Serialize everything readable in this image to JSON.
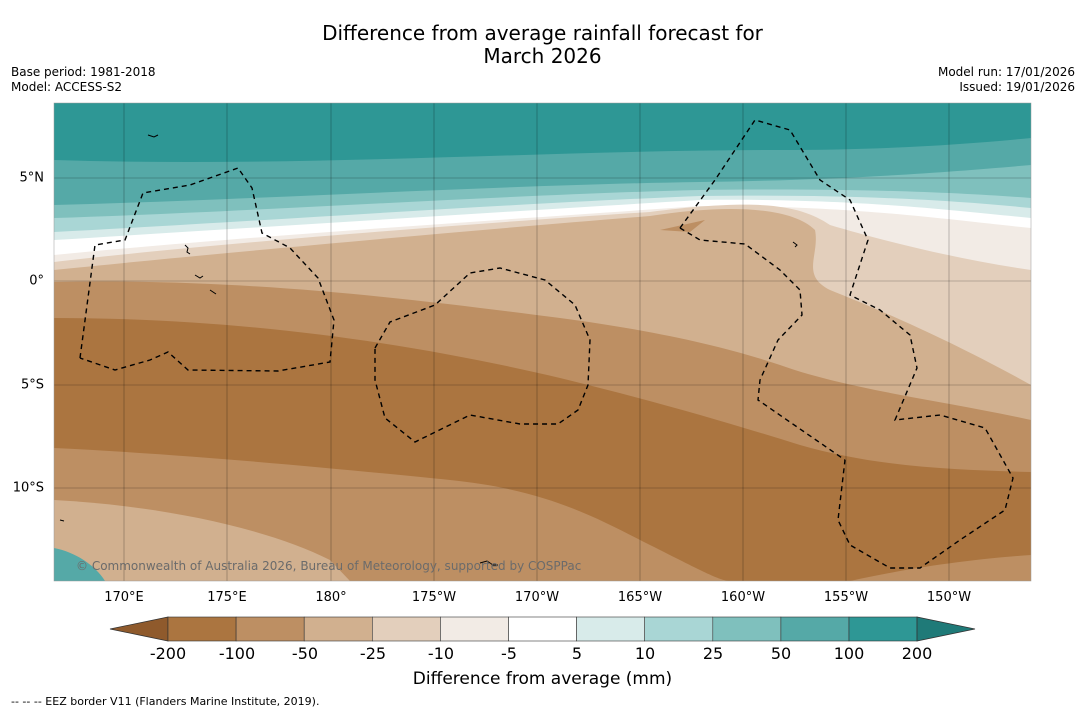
{
  "title_line1": "Difference from average rainfall forecast for",
  "title_line2": "March 2026",
  "base_period": "Base period: 1981-2018",
  "model": "Model: ACCESS-S2",
  "model_run": "Model run: 17/01/2026",
  "issued": "Issued: 19/01/2026",
  "longitude_labels": [
    "170°E",
    "175°E",
    "180°",
    "175°W",
    "170°W",
    "165°W",
    "160°W",
    "155°W",
    "150°W"
  ],
  "latitude_labels": [
    "5°N",
    "0°",
    "5°S",
    "10°S"
  ],
  "copyright": "© Commonwealth of Australia 2026, Bureau of Meteorology, supported by COSPPac",
  "colorbar": {
    "title": "Difference from average (mm)",
    "labels": [
      "-200",
      "-100",
      "-50",
      "-25",
      "-10",
      "-5",
      "5",
      "10",
      "25",
      "50",
      "100",
      "200"
    ],
    "colors": [
      "#ab7540",
      "#bd8f63",
      "#d1b08f",
      "#e3cfbc",
      "#f2ebe5",
      "#ffffff",
      "#d8ebea",
      "#a9d6d5",
      "#7fc0bd",
      "#55a9a7",
      "#2e9795",
      "#1f7a78"
    ],
    "low_extend_color": "#8f5a2c",
    "high_extend_color": "#1f7a78"
  },
  "legend_text": "--  --  -- EEZ border V11 (Flanders Marine Institute, 2019)."
}
